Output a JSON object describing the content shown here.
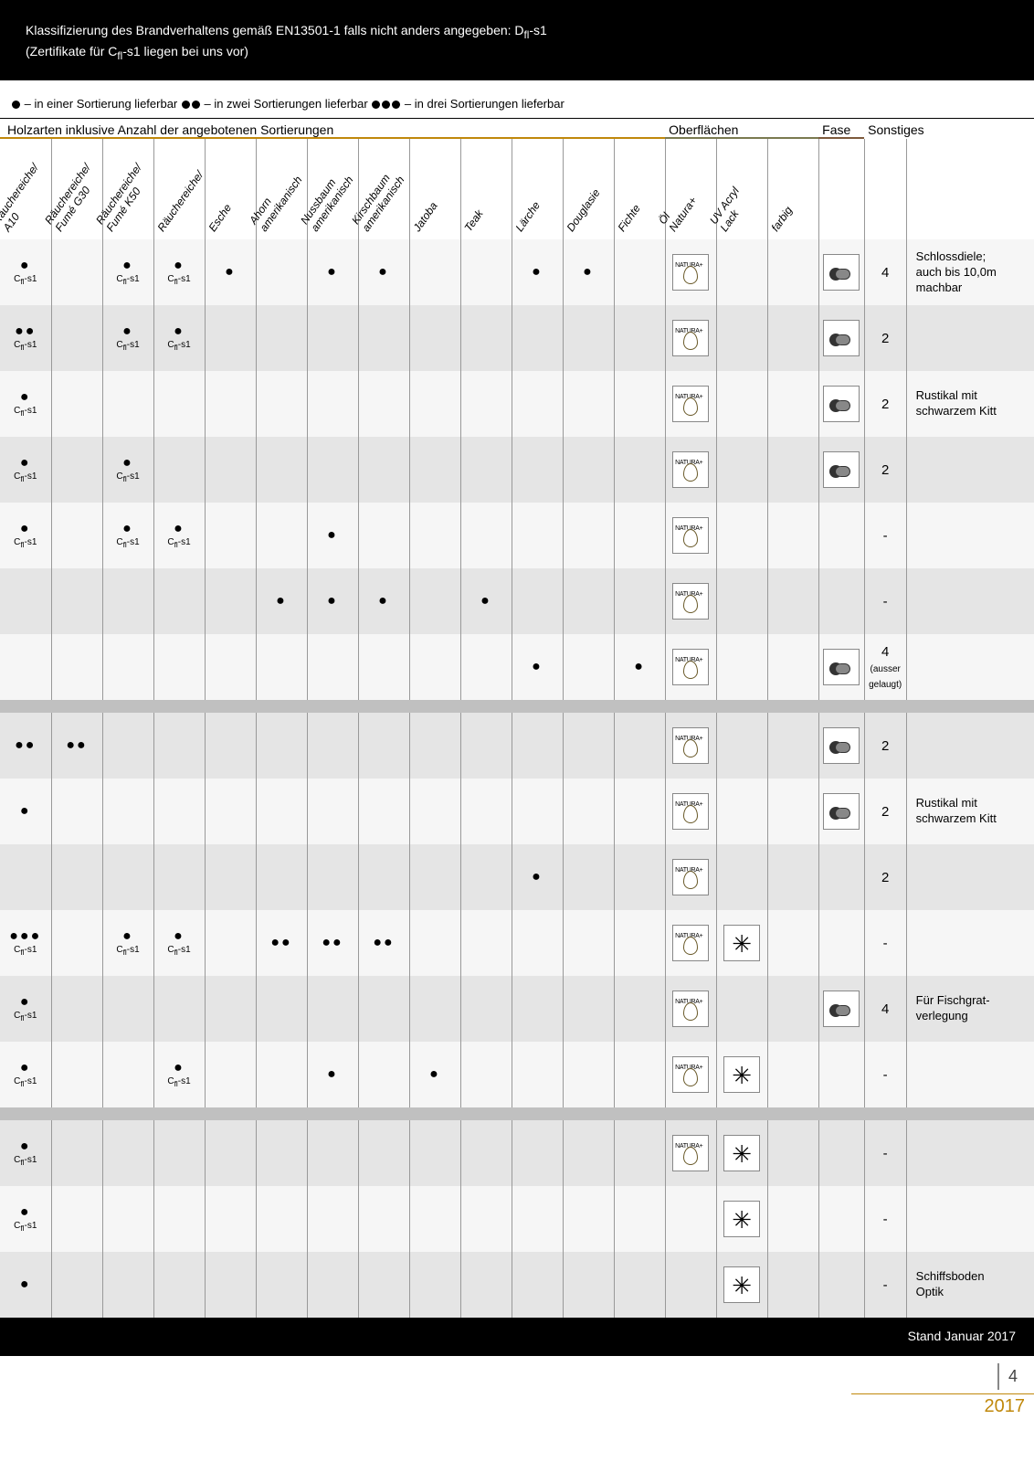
{
  "banner": {
    "line1_a": "Klassifizierung des Brandverhaltens gemäß EN13501-1 falls nicht anders angegeben: D",
    "line1_sub": "fl",
    "line1_b": "-s1",
    "line2_a": "(Zertifikate für C",
    "line2_sub": "fl",
    "line2_b": "-s1 liegen bei uns vor)"
  },
  "legend": {
    "t1": " – in einer Sortierung lieferbar  ",
    "t2": " – in zwei Sortierungen lieferbar  ",
    "t3": " – in drei Sortierungen lieferbar"
  },
  "groups": {
    "col_wood_start": 0,
    "col_wood_span": 12,
    "col_surf_start": 12,
    "col_surf_span": 3,
    "col_bevel_start": 15,
    "col_bevel_span": 1,
    "col_note_span": 2,
    "g1": "Holzarten inklusive Anzahl der angebotenen Sortierungen",
    "g2": "Oberflächen",
    "g3": "Fase",
    "g4": "Sonstiges",
    "u1_color": "#c0880b",
    "u2_color": "#7a7a50",
    "u3_color": "#7d5a3c"
  },
  "columns": [
    {
      "label": "Räuchereiche/\nA10"
    },
    {
      "label": "Räuchereiche/\nFumé G30"
    },
    {
      "label": "Räuchereiche/\nFumé K50"
    },
    {
      "label": "Räuchereiche/"
    },
    {
      "label": "Esche"
    },
    {
      "label": "Ahorn\namerikanisch"
    },
    {
      "label": "Nussbaum\namerikanisch"
    },
    {
      "label": "Kirschbaum\namerikanisch"
    },
    {
      "label": "Jatoba"
    },
    {
      "label": "Teak"
    },
    {
      "label": "Lärche"
    },
    {
      "label": "Douglasie"
    },
    {
      "label": "Fichte"
    },
    {
      "label": "Öl\nNatura+"
    },
    {
      "label": "UV Acryl\nLack"
    },
    {
      "label": "farbig"
    },
    {
      "label": ""
    },
    {
      "label": ""
    }
  ],
  "note_header": "",
  "cls_label": "Cfl-s1",
  "rows": [
    {
      "shade": false,
      "cells": [
        "1c",
        "",
        "1c",
        "1c",
        "1",
        "",
        "1",
        "1",
        "",
        "",
        "1",
        "1",
        ""
      ],
      "surf": [
        "nat",
        "",
        ""
      ],
      "bevel": "roll",
      "num": "4",
      "note": "Schlossdiele;\nauch bis 10,0m\nmachbar"
    },
    {
      "shade": true,
      "cells": [
        "2c",
        "",
        "1c",
        "1c",
        "",
        "",
        "",
        "",
        "",
        "",
        "",
        "",
        ""
      ],
      "surf": [
        "nat",
        "",
        ""
      ],
      "bevel": "roll",
      "num": "2",
      "note": ""
    },
    {
      "shade": false,
      "cells": [
        "1c",
        "",
        "",
        "",
        "",
        "",
        "",
        "",
        "",
        "",
        "",
        "",
        ""
      ],
      "surf": [
        "nat",
        "",
        ""
      ],
      "bevel": "roll",
      "num": "2",
      "note": "Rustikal mit\nschwarzem Kitt"
    },
    {
      "shade": true,
      "cells": [
        "1c",
        "",
        "1c",
        "",
        "",
        "",
        "",
        "",
        "",
        "",
        "",
        "",
        ""
      ],
      "surf": [
        "nat",
        "",
        ""
      ],
      "bevel": "roll",
      "num": "2",
      "note": ""
    },
    {
      "shade": false,
      "cells": [
        "1c",
        "",
        "1c",
        "1c",
        "",
        "",
        "1",
        "",
        "",
        "",
        "",
        "",
        ""
      ],
      "surf": [
        "nat",
        "",
        ""
      ],
      "bevel": "",
      "num": "-",
      "note": ""
    },
    {
      "shade": true,
      "cells": [
        "",
        "",
        "",
        "",
        "",
        "1",
        "1",
        "1",
        "",
        "1",
        "",
        "",
        ""
      ],
      "surf": [
        "nat",
        "",
        ""
      ],
      "bevel": "",
      "num": "-",
      "note": ""
    },
    {
      "shade": false,
      "cells": [
        "",
        "",
        "",
        "",
        "",
        "",
        "",
        "",
        "",
        "",
        "1",
        "",
        "1"
      ],
      "surf": [
        "nat",
        "",
        ""
      ],
      "bevel": "roll",
      "num": "4 (ausser\ngelaugt)",
      "note": ""
    },
    {
      "sep": true
    },
    {
      "shade": true,
      "cells": [
        "2",
        "2",
        "",
        "",
        "",
        "",
        "",
        "",
        "",
        "",
        "",
        "",
        ""
      ],
      "surf": [
        "nat",
        "",
        ""
      ],
      "bevel": "roll",
      "num": "2",
      "note": ""
    },
    {
      "shade": false,
      "cells": [
        "1",
        "",
        "",
        "",
        "",
        "",
        "",
        "",
        "",
        "",
        "",
        "",
        ""
      ],
      "surf": [
        "nat",
        "",
        ""
      ],
      "bevel": "roll",
      "num": "2",
      "note": "Rustikal mit\nschwarzem Kitt"
    },
    {
      "shade": true,
      "cells": [
        "",
        "",
        "",
        "",
        "",
        "",
        "",
        "",
        "",
        "",
        "1",
        "",
        ""
      ],
      "surf": [
        "nat",
        "",
        ""
      ],
      "bevel": "",
      "num": "2",
      "note": ""
    },
    {
      "shade": false,
      "cells": [
        "3c",
        "",
        "1c",
        "1c",
        "",
        "2",
        "2",
        "2",
        "",
        "",
        "",
        "",
        ""
      ],
      "surf": [
        "nat",
        "lack",
        ""
      ],
      "bevel": "",
      "num": "-",
      "note": ""
    },
    {
      "shade": true,
      "cells": [
        "1c",
        "",
        "",
        "",
        "",
        "",
        "",
        "",
        "",
        "",
        "",
        "",
        ""
      ],
      "surf": [
        "nat",
        "",
        ""
      ],
      "bevel": "roll",
      "num": "4",
      "note": "Für Fischgrat-\nverlegung"
    },
    {
      "shade": false,
      "cells": [
        "1c",
        "",
        "",
        "1c",
        "",
        "",
        "1",
        "",
        "1",
        "",
        "",
        "",
        ""
      ],
      "surf": [
        "nat",
        "lack",
        ""
      ],
      "bevel": "",
      "num": "-",
      "note": ""
    },
    {
      "sep": true
    },
    {
      "shade": true,
      "cells": [
        "1c",
        "",
        "",
        "",
        "",
        "",
        "",
        "",
        "",
        "",
        "",
        "",
        ""
      ],
      "surf": [
        "nat",
        "lack",
        ""
      ],
      "bevel": "",
      "num": "-",
      "note": ""
    },
    {
      "shade": false,
      "cells": [
        "1c",
        "",
        "",
        "",
        "",
        "",
        "",
        "",
        "",
        "",
        "",
        "",
        ""
      ],
      "surf": [
        "",
        "lack",
        ""
      ],
      "bevel": "",
      "num": "-",
      "note": ""
    },
    {
      "shade": true,
      "cells": [
        "1",
        "",
        "",
        "",
        "",
        "",
        "",
        "",
        "",
        "",
        "",
        "",
        ""
      ],
      "surf": [
        "",
        "lack",
        ""
      ],
      "bevel": "",
      "num": "-",
      "note": "Schiffsboden\nOptik"
    }
  ],
  "footer": {
    "stand": "Stand Januar 2017",
    "page": "4",
    "year": "2017"
  }
}
